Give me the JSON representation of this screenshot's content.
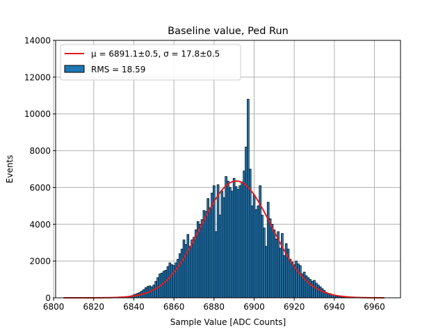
{
  "chart_data": {
    "type": "bar",
    "title": "Baseline value, Ped Run",
    "xlabel": "Sample Value [ADC Counts]",
    "ylabel": "Events",
    "xlim": [
      6801,
      6973
    ],
    "ylim": [
      0,
      14000
    ],
    "xticks": [
      6800,
      6820,
      6840,
      6860,
      6880,
      6900,
      6920,
      6940,
      6960
    ],
    "yticks": [
      0,
      2000,
      4000,
      6000,
      8000,
      10000,
      12000,
      14000
    ],
    "grid": true,
    "legend_position": "top-left",
    "bar_color": "#1f77b4",
    "fit_color": "#e31a1c",
    "bin_width": 1,
    "x": [
      6835,
      6836,
      6837,
      6838,
      6839,
      6840,
      6841,
      6842,
      6843,
      6844,
      6845,
      6846,
      6847,
      6848,
      6849,
      6850,
      6851,
      6852,
      6853,
      6854,
      6855,
      6856,
      6857,
      6858,
      6859,
      6860,
      6861,
      6862,
      6863,
      6864,
      6865,
      6866,
      6867,
      6868,
      6869,
      6870,
      6871,
      6872,
      6873,
      6874,
      6875,
      6876,
      6877,
      6878,
      6879,
      6880,
      6881,
      6882,
      6883,
      6884,
      6885,
      6886,
      6887,
      6888,
      6889,
      6890,
      6891,
      6892,
      6893,
      6894,
      6895,
      6896,
      6897,
      6898,
      6899,
      6900,
      6901,
      6902,
      6903,
      6904,
      6905,
      6906,
      6907,
      6908,
      6909,
      6910,
      6911,
      6912,
      6913,
      6914,
      6915,
      6916,
      6917,
      6918,
      6919,
      6920,
      6921,
      6922,
      6923,
      6924,
      6925,
      6926,
      6927,
      6928,
      6929,
      6930,
      6931,
      6932,
      6933,
      6934,
      6935,
      6936,
      6937,
      6938,
      6939,
      6940,
      6941,
      6942,
      6943,
      6944,
      6945,
      6946,
      6947,
      6948
    ],
    "values": [
      20,
      40,
      60,
      90,
      120,
      160,
      200,
      250,
      300,
      370,
      450,
      550,
      620,
      650,
      600,
      700,
      900,
      1100,
      1300,
      1350,
      1450,
      1500,
      1700,
      1900,
      1800,
      1750,
      1900,
      2100,
      2400,
      2650,
      3150,
      2900,
      3450,
      2800,
      3150,
      3300,
      3700,
      4150,
      4000,
      4250,
      4750,
      4700,
      5400,
      4900,
      5700,
      6100,
      3600,
      6150,
      4500,
      5800,
      5450,
      6600,
      6350,
      6000,
      5800,
      6500,
      6050,
      5900,
      6100,
      6300,
      6900,
      8200,
      10800,
      7000,
      5000,
      5600,
      4800,
      5000,
      6100,
      4500,
      3800,
      2800,
      5200,
      4300,
      4000,
      3700,
      3200,
      3600,
      2700,
      3500,
      2300,
      2950,
      2650,
      2100,
      1950,
      1800,
      2000,
      1850,
      1750,
      1300,
      1400,
      1200,
      1100,
      1000,
      900,
      950,
      800,
      700,
      600,
      500,
      400,
      300,
      250,
      230,
      180,
      160,
      90,
      70,
      60,
      40,
      30,
      20,
      15,
      10
    ],
    "legend": [
      {
        "label": "μ = 6891.1±0.5, σ = 17.8±0.5",
        "kind": "line"
      },
      {
        "label": "RMS = 18.59",
        "kind": "patch"
      }
    ],
    "fit": {
      "type": "gaussian",
      "mean": 6891.1,
      "sigma": 17.8,
      "amplitude": 6350,
      "x_range": [
        6805,
        6965
      ]
    }
  }
}
